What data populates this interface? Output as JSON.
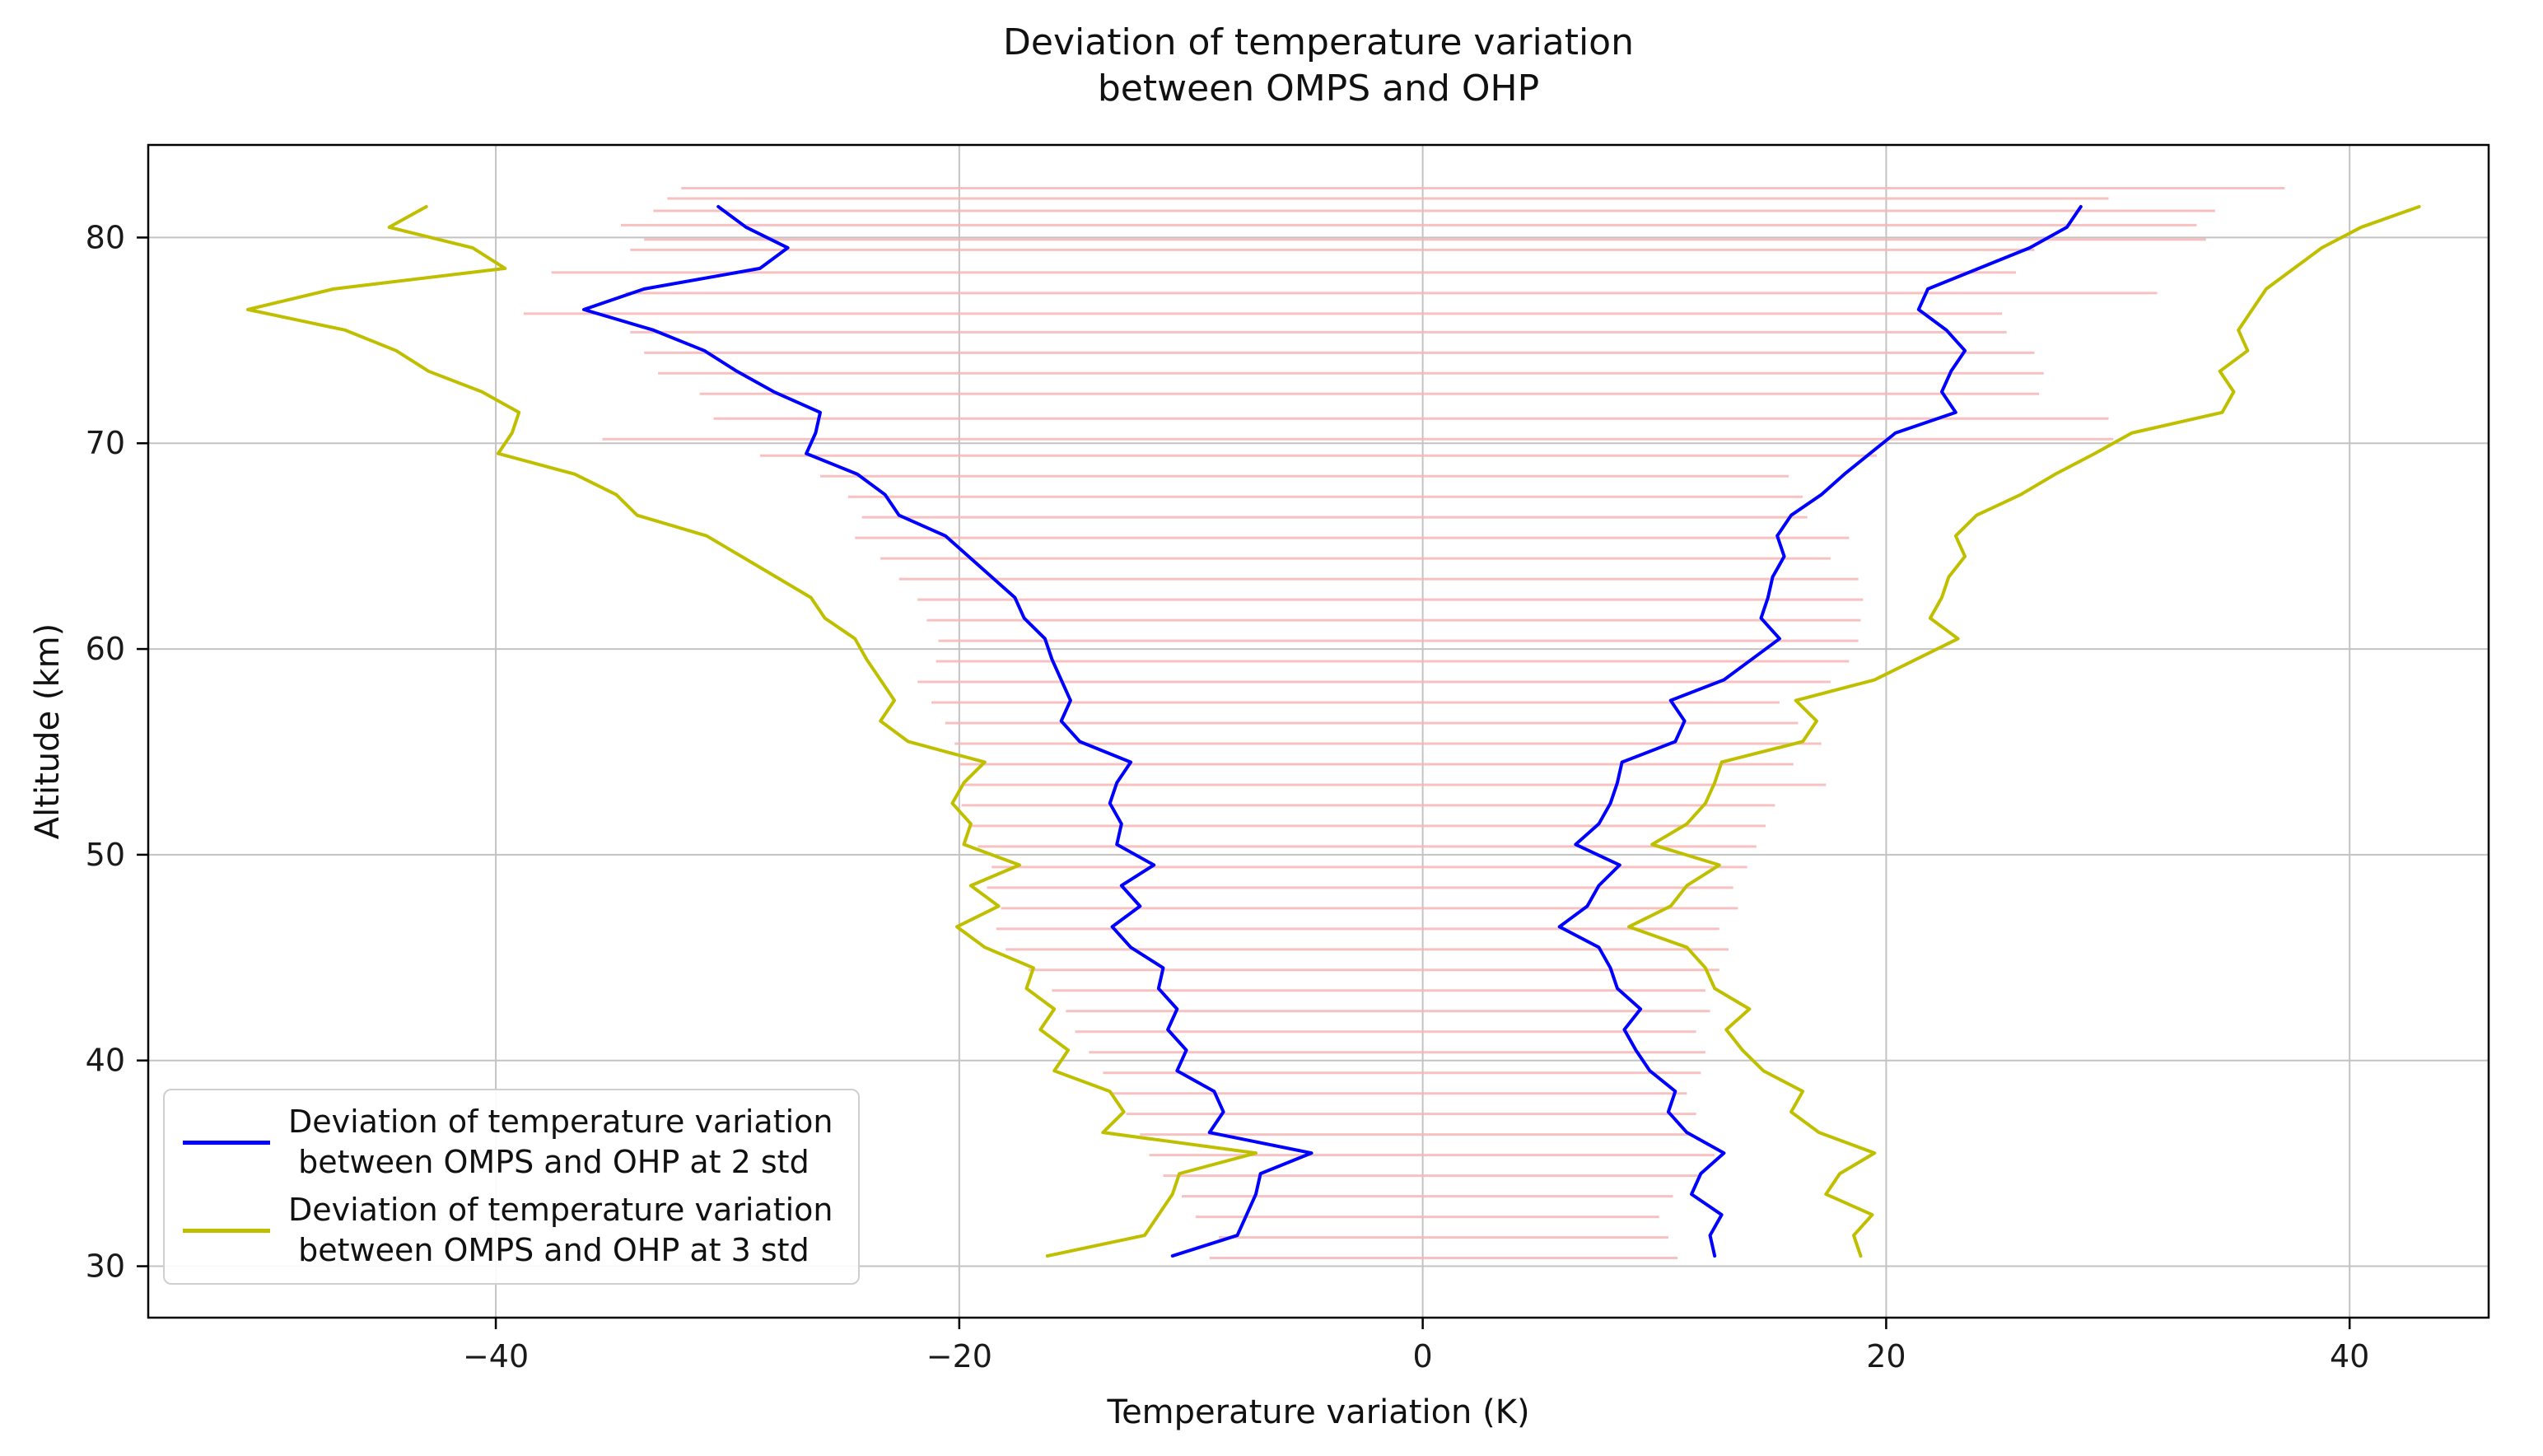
{
  "chart_data": {
    "type": "line",
    "title": "Deviation of temperature variation\nbetween OMPS and OHP",
    "xlabel": "Temperature variation (K)",
    "ylabel": "Altitude (km)",
    "xlim": [
      -55,
      46
    ],
    "ylim": [
      27.5,
      84.5
    ],
    "xticks": [
      -40,
      -20,
      0,
      20,
      40
    ],
    "xtick_labels": [
      "−40",
      "−20",
      "0",
      "20",
      "40"
    ],
    "yticks": [
      30,
      40,
      50,
      60,
      70,
      80
    ],
    "ytick_labels": [
      "30",
      "40",
      "50",
      "60",
      "70",
      "80"
    ],
    "grid": true,
    "legend_position": "lower left",
    "colors": {
      "grid": "#c3c3c3",
      "axes": "#000000",
      "errorbar": "#f7b6b6",
      "series_2std": "#0000ff",
      "series_3std": "#bfbf00"
    },
    "series": [
      {
        "name": "Deviation of temperature variation\n between OMPS and OHP at 2 std",
        "color": "#0000ff",
        "altitudes": [
          30.5,
          31.5,
          32.5,
          33.5,
          34.5,
          35.5,
          36.5,
          37.5,
          38.5,
          39.5,
          40.5,
          41.5,
          42.5,
          43.5,
          44.5,
          45.5,
          46.5,
          47.5,
          48.5,
          49.5,
          50.5,
          51.5,
          52.5,
          53.5,
          54.5,
          55.5,
          56.5,
          57.5,
          58.5,
          59.5,
          60.5,
          61.5,
          62.5,
          63.5,
          64.5,
          65.5,
          66.5,
          67.5,
          68.5,
          69.5,
          70.5,
          71.5,
          72.5,
          73.5,
          74.5,
          75.5,
          76.5,
          77.5,
          78.5,
          79.5,
          80.5,
          81.5
        ],
        "neg": [
          -10.8,
          -8.0,
          -7.6,
          -7.2,
          -7.0,
          -4.8,
          -9.2,
          -8.6,
          -9.0,
          -10.6,
          -10.2,
          -11.0,
          -10.6,
          -11.4,
          -11.2,
          -12.6,
          -13.4,
          -12.2,
          -13.0,
          -11.6,
          -13.2,
          -13.0,
          -13.5,
          -13.2,
          -12.6,
          -14.8,
          -15.6,
          -15.2,
          -15.6,
          -16.0,
          -16.3,
          -17.2,
          -17.6,
          -18.6,
          -19.6,
          -20.6,
          -22.6,
          -23.2,
          -24.4,
          -26.6,
          -26.2,
          -26.0,
          -28.0,
          -29.6,
          -31.0,
          -33.2,
          -36.2,
          -33.6,
          -28.6,
          -27.4,
          -29.2,
          -30.4
        ],
        "pos": [
          12.6,
          12.4,
          12.9,
          11.6,
          12.0,
          13.0,
          11.4,
          10.6,
          10.9,
          9.8,
          9.2,
          8.7,
          9.4,
          8.4,
          8.1,
          7.6,
          5.9,
          7.1,
          7.6,
          8.5,
          6.6,
          7.6,
          8.1,
          8.4,
          8.6,
          10.9,
          11.3,
          10.7,
          13.0,
          14.2,
          15.4,
          14.6,
          14.9,
          15.1,
          15.6,
          15.3,
          15.9,
          17.2,
          18.2,
          19.3,
          20.4,
          23.0,
          22.4,
          22.8,
          23.4,
          22.6,
          21.4,
          21.8,
          24.0,
          26.2,
          27.8,
          28.4
        ]
      },
      {
        "name": "Deviation of temperature variation\n between OMPS and OHP at 3 std",
        "color": "#bfbf00",
        "altitudes": [
          30.5,
          31.5,
          32.5,
          33.5,
          34.5,
          35.5,
          36.5,
          37.5,
          38.5,
          39.5,
          40.5,
          41.5,
          42.5,
          43.5,
          44.5,
          45.5,
          46.5,
          47.5,
          48.5,
          49.5,
          50.5,
          51.5,
          52.5,
          53.5,
          54.5,
          55.5,
          56.5,
          57.5,
          58.5,
          59.5,
          60.5,
          61.5,
          62.5,
          63.5,
          64.5,
          65.5,
          66.5,
          67.5,
          68.5,
          69.5,
          70.5,
          71.5,
          72.5,
          73.5,
          74.5,
          75.5,
          76.5,
          77.5,
          78.5,
          79.5,
          80.5,
          81.5
        ],
        "neg": [
          -16.2,
          -12.0,
          -11.4,
          -10.8,
          -10.5,
          -7.2,
          -13.8,
          -12.9,
          -13.5,
          -15.9,
          -15.3,
          -16.5,
          -15.9,
          -17.1,
          -16.8,
          -18.9,
          -20.1,
          -18.3,
          -19.5,
          -17.4,
          -19.8,
          -19.5,
          -20.3,
          -19.8,
          -18.9,
          -22.2,
          -23.4,
          -22.8,
          -23.4,
          -24.0,
          -24.5,
          -25.8,
          -26.4,
          -27.9,
          -29.4,
          -30.9,
          -33.9,
          -34.8,
          -36.6,
          -39.9,
          -39.3,
          -39.0,
          -40.6,
          -42.9,
          -44.3,
          -46.5,
          -50.7,
          -47.0,
          -39.6,
          -41.0,
          -44.6,
          -43.0
        ],
        "pos": [
          18.9,
          18.6,
          19.4,
          17.4,
          18.0,
          19.5,
          17.1,
          15.9,
          16.4,
          14.7,
          13.8,
          13.1,
          14.1,
          12.6,
          12.2,
          11.4,
          8.9,
          10.7,
          11.4,
          12.8,
          9.9,
          11.4,
          12.2,
          12.6,
          12.9,
          16.4,
          17.0,
          16.1,
          19.5,
          21.3,
          23.1,
          21.9,
          22.4,
          22.7,
          23.4,
          23.0,
          23.9,
          25.8,
          27.3,
          29.0,
          30.6,
          34.5,
          35.0,
          34.4,
          35.6,
          35.2,
          35.8,
          36.4,
          37.6,
          38.8,
          40.5,
          43.0
        ]
      }
    ],
    "errorbars": {
      "color": "#f7b6b6",
      "bars": [
        [
          30.4,
          -9.2,
          11.0
        ],
        [
          31.4,
          -8.8,
          10.6
        ],
        [
          32.4,
          -9.8,
          10.2
        ],
        [
          33.4,
          -10.4,
          10.8
        ],
        [
          34.4,
          -11.2,
          12.0
        ],
        [
          35.4,
          -11.8,
          12.6
        ],
        [
          36.4,
          -12.2,
          11.6
        ],
        [
          37.4,
          -12.8,
          11.8
        ],
        [
          38.4,
          -13.4,
          11.4
        ],
        [
          39.4,
          -13.8,
          12.0
        ],
        [
          40.4,
          -14.4,
          12.2
        ],
        [
          41.4,
          -15.0,
          11.8
        ],
        [
          42.4,
          -15.4,
          12.4
        ],
        [
          43.4,
          -16.0,
          12.2
        ],
        [
          44.4,
          -17.0,
          12.8
        ],
        [
          45.4,
          -18.0,
          13.2
        ],
        [
          46.4,
          -18.4,
          12.8
        ],
        [
          47.4,
          -18.2,
          13.6
        ],
        [
          48.4,
          -18.8,
          13.4
        ],
        [
          49.4,
          -18.6,
          14.0
        ],
        [
          50.4,
          -19.2,
          14.4
        ],
        [
          51.4,
          -19.6,
          14.8
        ],
        [
          52.4,
          -19.9,
          15.2
        ],
        [
          53.4,
          -19.8,
          17.4
        ],
        [
          54.4,
          -20.0,
          16.0
        ],
        [
          55.4,
          -20.2,
          17.2
        ],
        [
          56.4,
          -20.6,
          16.2
        ],
        [
          57.4,
          -21.2,
          15.4
        ],
        [
          58.4,
          -21.8,
          17.6
        ],
        [
          59.4,
          -21.0,
          18.4
        ],
        [
          60.4,
          -20.9,
          18.8
        ],
        [
          61.4,
          -21.4,
          18.9
        ],
        [
          62.4,
          -21.8,
          19.0
        ],
        [
          63.4,
          -22.6,
          18.8
        ],
        [
          64.4,
          -23.4,
          17.6
        ],
        [
          65.4,
          -24.5,
          18.4
        ],
        [
          66.4,
          -24.2,
          16.6
        ],
        [
          67.4,
          -24.8,
          16.4
        ],
        [
          68.4,
          -26.0,
          15.8
        ],
        [
          69.4,
          -28.6,
          19.6
        ],
        [
          70.2,
          -35.4,
          29.8
        ],
        [
          71.2,
          -30.6,
          29.6
        ],
        [
          72.4,
          -31.2,
          26.6
        ],
        [
          73.4,
          -33.0,
          26.8
        ],
        [
          74.4,
          -33.6,
          26.4
        ],
        [
          75.4,
          -34.2,
          25.2
        ],
        [
          76.3,
          -38.8,
          25.0
        ],
        [
          77.3,
          -34.4,
          31.7
        ],
        [
          78.3,
          -37.6,
          25.6
        ],
        [
          79.4,
          -34.2,
          26.4
        ],
        [
          79.9,
          -33.6,
          33.8
        ],
        [
          80.6,
          -34.6,
          33.4
        ],
        [
          81.3,
          -33.2,
          34.2
        ],
        [
          81.9,
          -32.6,
          29.6
        ],
        [
          82.4,
          -32.0,
          37.2
        ]
      ]
    }
  }
}
